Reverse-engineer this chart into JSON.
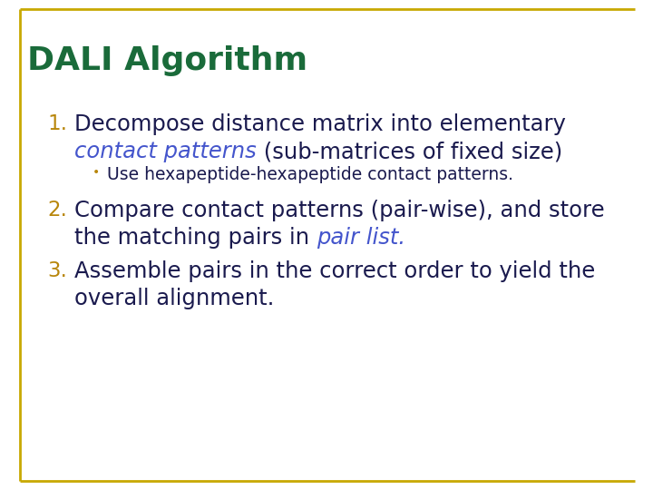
{
  "title": "DALI Algorithm",
  "title_color": "#1a6b3a",
  "background_color": "#ffffff",
  "border_color": "#c8a800",
  "number_color": "#b8860b",
  "text_color": "#1a1a4e",
  "bullet_color": "#b8860b",
  "italic_blue_color": "#4455cc",
  "item1_line1": "Decompose distance matrix into elementary",
  "item1_line2_italic": "contact patterns",
  "item1_line2_normal": " (sub-matrices of fixed size)",
  "item1_bullet": "Use hexapeptide-hexapeptide contact patterns.",
  "item2_line1": "Compare contact patterns (pair-wise), and store",
  "item2_line2_normal": "the matching pairs in ",
  "item2_line2_italic": "pair list.",
  "item3_line1": "Assemble pairs in the correct order to yield the",
  "item3_line2": "overall alignment.",
  "figsize": [
    7.2,
    5.4
  ],
  "dpi": 100
}
